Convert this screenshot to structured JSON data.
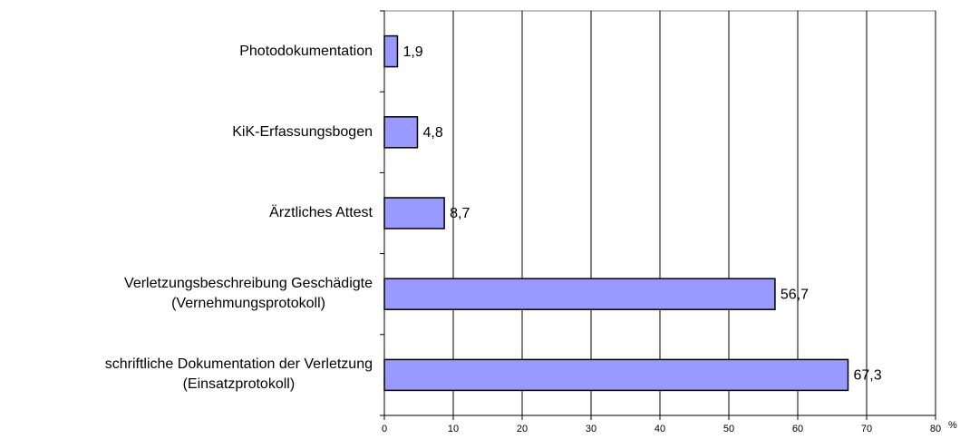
{
  "chart_data": {
    "type": "bar",
    "orientation": "horizontal",
    "categories": [
      "Photodokumentation",
      "KiK-Erfassungsbogen",
      "Ärztliches Attest",
      "Verletzungsbeschreibung Geschädigte\n(Vernehmungsprotokoll)",
      "schriftliche Dokumentation der Verletzung\n(Einsatzprotokoll)"
    ],
    "values": [
      1.9,
      4.8,
      8.7,
      56.7,
      67.3
    ],
    "value_labels": [
      "1,9",
      "4,8",
      "8,7",
      "56,7",
      "67,3"
    ],
    "color": "#9999ff",
    "xlim": [
      0,
      80
    ],
    "xticks": [
      0,
      10,
      20,
      30,
      40,
      50,
      60,
      70,
      80
    ],
    "xlabel": "%",
    "grid": true
  }
}
